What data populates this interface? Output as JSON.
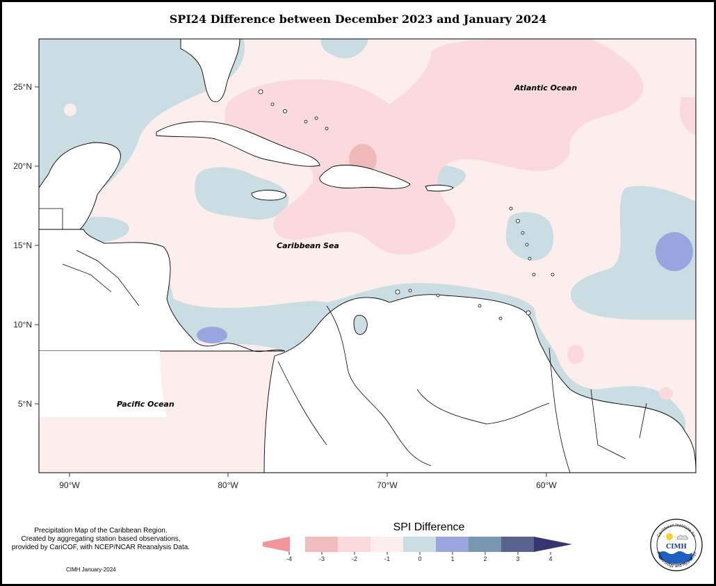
{
  "title": "SPI24 Difference between December 2023 and January 2024",
  "map": {
    "lat_ticks": [
      "25°N",
      "20°N",
      "15°N",
      "10°N",
      "5°N"
    ],
    "lon_ticks": [
      "90°W",
      "80°W",
      "70°W",
      "60°W"
    ],
    "labels": {
      "atlantic": "Atlantic Ocean",
      "caribbean": "Caribbean Sea",
      "pacific": "Pacific Ocean"
    }
  },
  "footnote": {
    "line1": "Precipitation Map of the Caribbean Region.",
    "line2": "Created by aggregating station based observations,",
    "line3": "provided by CariCOF, with NCEP/NCAR Reanalysis Data.",
    "credit": "CIMH January-2024"
  },
  "legend": {
    "title": "SPI Difference",
    "ticks": [
      "-4",
      "-3",
      "-2",
      "-1",
      "0",
      "1",
      "2",
      "3",
      "4"
    ],
    "colors": [
      "#f2969b",
      "#f1bcbe",
      "#fbdadd",
      "#fdeeee",
      "#c9dde3",
      "#99a5df",
      "#7a97b0",
      "#57638c",
      "#35366f"
    ]
  },
  "logo": {
    "text": "CIMH",
    "ring_top": "Caribbean Institute for",
    "ring_bottom": "Meteorology and Hydrology"
  },
  "colors": {
    "light_pink": "#fdeeee",
    "pink": "#fbdadd",
    "salmon": "#f0b0b0",
    "light_blue": "#c9dde3",
    "blue": "#99a5df"
  }
}
